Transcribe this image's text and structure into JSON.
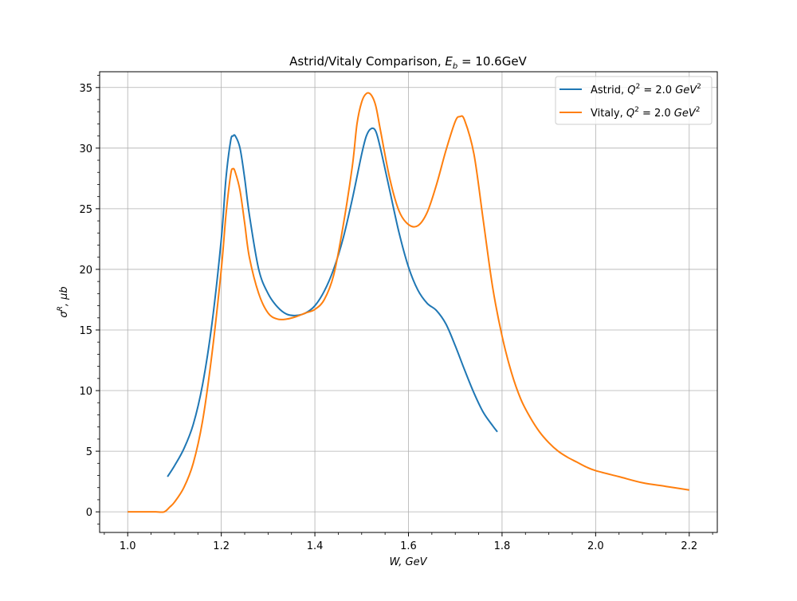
{
  "chart_data": {
    "type": "line",
    "title": "Astrid/Vitaly Comparison, E_b = 10.6GeV",
    "title_parts": {
      "main": "Astrid/Vitaly Comparison, ",
      "sym": "E",
      "sub": "b",
      "rest": " = 10.6GeV"
    },
    "xlabel": "W, GeV",
    "ylabel": "σR, μb",
    "ylabel_parts": {
      "sym": "σ",
      "sup": "R",
      "rest": ", μb"
    },
    "xlim": [
      0.94,
      2.26
    ],
    "ylim": [
      -1.7,
      36.3
    ],
    "xticks": [
      1.0,
      1.2,
      1.4,
      1.6,
      1.8,
      2.0,
      2.2
    ],
    "xtick_labels": [
      "1.0",
      "1.2",
      "1.4",
      "1.6",
      "1.8",
      "2.0",
      "2.2"
    ],
    "yticks": [
      0,
      5,
      10,
      15,
      20,
      25,
      30,
      35
    ],
    "ytick_labels": [
      "0",
      "5",
      "10",
      "15",
      "20",
      "25",
      "30",
      "35"
    ],
    "grid": true,
    "legend_position": "top-right",
    "series": [
      {
        "name": "Astrid, Q² = 2.0 GeV²",
        "name_parts": {
          "main": "Astrid, ",
          "q": "Q",
          "q_sup": "2",
          "eq": " = 2.0 ",
          "unit": "GeV",
          "unit_sup": "2"
        },
        "color": "#1f77b4",
        "points": [
          [
            1.085,
            2.9
          ],
          [
            1.1,
            3.8
          ],
          [
            1.12,
            5.2
          ],
          [
            1.14,
            7.2
          ],
          [
            1.16,
            10.5
          ],
          [
            1.18,
            15.5
          ],
          [
            1.2,
            22.5
          ],
          [
            1.21,
            27.5
          ],
          [
            1.22,
            30.6
          ],
          [
            1.225,
            31.0
          ],
          [
            1.23,
            31.0
          ],
          [
            1.24,
            30.0
          ],
          [
            1.25,
            27.5
          ],
          [
            1.26,
            24.5
          ],
          [
            1.28,
            20.0
          ],
          [
            1.3,
            18.0
          ],
          [
            1.32,
            16.9
          ],
          [
            1.34,
            16.3
          ],
          [
            1.36,
            16.2
          ],
          [
            1.38,
            16.4
          ],
          [
            1.4,
            17.0
          ],
          [
            1.42,
            18.2
          ],
          [
            1.44,
            20.0
          ],
          [
            1.46,
            22.5
          ],
          [
            1.48,
            25.8
          ],
          [
            1.5,
            29.5
          ],
          [
            1.51,
            31.0
          ],
          [
            1.52,
            31.6
          ],
          [
            1.53,
            31.4
          ],
          [
            1.54,
            30.0
          ],
          [
            1.56,
            26.5
          ],
          [
            1.58,
            23.0
          ],
          [
            1.6,
            20.2
          ],
          [
            1.62,
            18.3
          ],
          [
            1.64,
            17.2
          ],
          [
            1.66,
            16.6
          ],
          [
            1.68,
            15.5
          ],
          [
            1.7,
            13.7
          ],
          [
            1.72,
            11.7
          ],
          [
            1.74,
            9.8
          ],
          [
            1.76,
            8.2
          ],
          [
            1.78,
            7.1
          ],
          [
            1.79,
            6.6
          ]
        ]
      },
      {
        "name": "Vitaly, Q² = 2.0 GeV²",
        "name_parts": {
          "main": "Vitaly, ",
          "q": "Q",
          "q_sup": "2",
          "eq": " = 2.0 ",
          "unit": "GeV",
          "unit_sup": "2"
        },
        "color": "#ff7f0e",
        "points": [
          [
            1.0,
            0.0
          ],
          [
            1.02,
            0.0
          ],
          [
            1.04,
            0.0
          ],
          [
            1.06,
            0.0
          ],
          [
            1.078,
            0.0
          ],
          [
            1.09,
            0.4
          ],
          [
            1.1,
            0.8
          ],
          [
            1.12,
            2.0
          ],
          [
            1.14,
            4.0
          ],
          [
            1.16,
            7.5
          ],
          [
            1.18,
            13.0
          ],
          [
            1.2,
            20.0
          ],
          [
            1.21,
            24.5
          ],
          [
            1.22,
            27.8
          ],
          [
            1.225,
            28.3
          ],
          [
            1.23,
            28.0
          ],
          [
            1.24,
            26.5
          ],
          [
            1.25,
            23.8
          ],
          [
            1.26,
            21.0
          ],
          [
            1.28,
            18.0
          ],
          [
            1.3,
            16.4
          ],
          [
            1.32,
            15.9
          ],
          [
            1.34,
            15.9
          ],
          [
            1.36,
            16.1
          ],
          [
            1.38,
            16.4
          ],
          [
            1.4,
            16.7
          ],
          [
            1.42,
            17.5
          ],
          [
            1.44,
            19.5
          ],
          [
            1.46,
            23.5
          ],
          [
            1.48,
            28.5
          ],
          [
            1.49,
            32.0
          ],
          [
            1.5,
            33.8
          ],
          [
            1.51,
            34.5
          ],
          [
            1.52,
            34.4
          ],
          [
            1.53,
            33.5
          ],
          [
            1.54,
            31.5
          ],
          [
            1.56,
            27.5
          ],
          [
            1.58,
            24.8
          ],
          [
            1.6,
            23.7
          ],
          [
            1.62,
            23.6
          ],
          [
            1.64,
            24.7
          ],
          [
            1.66,
            27.0
          ],
          [
            1.68,
            29.8
          ],
          [
            1.7,
            32.2
          ],
          [
            1.71,
            32.6
          ],
          [
            1.72,
            32.3
          ],
          [
            1.74,
            29.5
          ],
          [
            1.76,
            24.0
          ],
          [
            1.78,
            18.5
          ],
          [
            1.8,
            14.5
          ],
          [
            1.82,
            11.5
          ],
          [
            1.84,
            9.3
          ],
          [
            1.86,
            7.8
          ],
          [
            1.88,
            6.6
          ],
          [
            1.9,
            5.7
          ],
          [
            1.92,
            5.0
          ],
          [
            1.94,
            4.5
          ],
          [
            1.96,
            4.1
          ],
          [
            1.98,
            3.7
          ],
          [
            2.0,
            3.4
          ],
          [
            2.05,
            2.9
          ],
          [
            2.1,
            2.4
          ],
          [
            2.15,
            2.1
          ],
          [
            2.2,
            1.8
          ]
        ]
      }
    ]
  }
}
